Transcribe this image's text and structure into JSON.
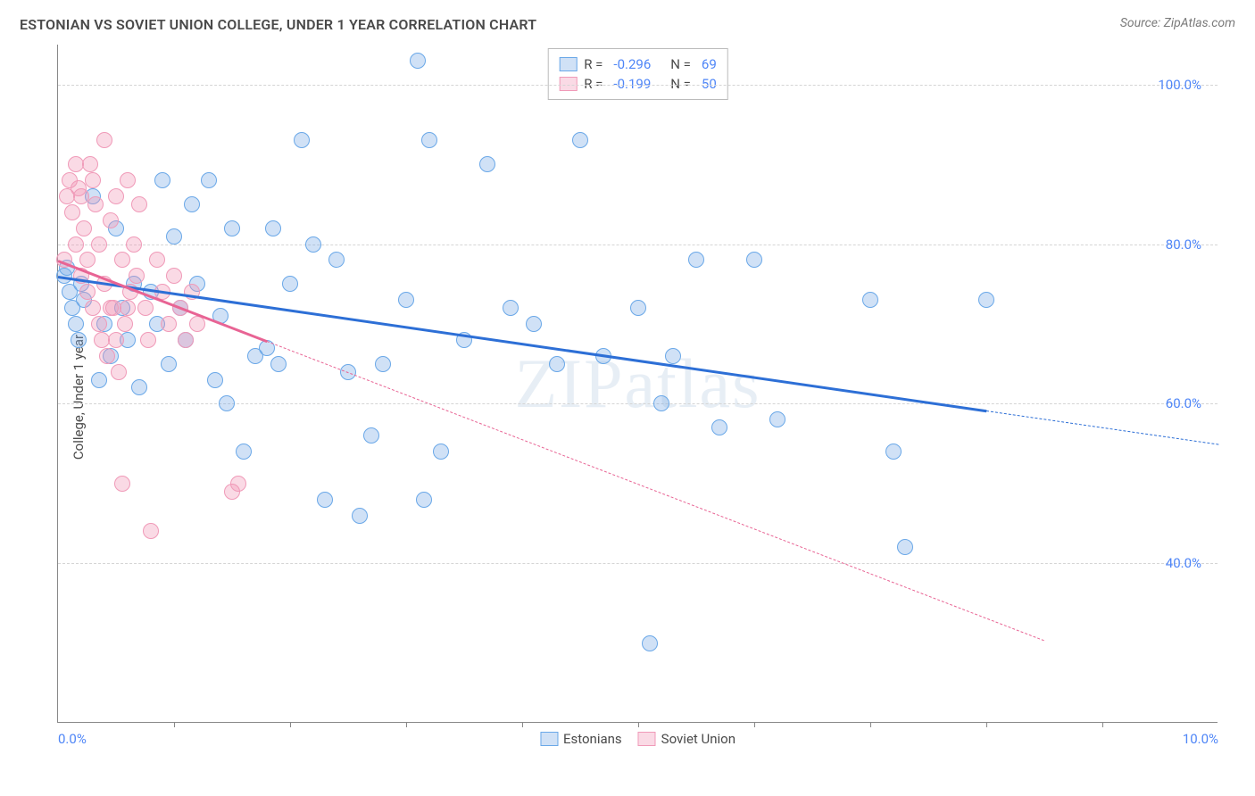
{
  "title": "ESTONIAN VS SOVIET UNION COLLEGE, UNDER 1 YEAR CORRELATION CHART",
  "source": "Source: ZipAtlas.com",
  "ylabel": "College, Under 1 year",
  "watermark": "ZIPatlas",
  "chart": {
    "type": "scatter",
    "xlim": [
      0,
      10
    ],
    "ylim": [
      20,
      105
    ],
    "background_color": "#ffffff",
    "grid_color": "#d5d5d5",
    "axis_color": "#888888",
    "yticks": [
      {
        "value": 40,
        "label": "40.0%"
      },
      {
        "value": 60,
        "label": "60.0%"
      },
      {
        "value": 80,
        "label": "80.0%"
      },
      {
        "value": 100,
        "label": "100.0%"
      }
    ],
    "xtick_positions": [
      1,
      2,
      3,
      4,
      5,
      6,
      7,
      8,
      9
    ],
    "xaxis_labels": [
      {
        "pos": 0,
        "text": "0.0%"
      },
      {
        "pos": 10,
        "text": "10.0%"
      }
    ],
    "marker_radius": 9,
    "marker_border_width": 1.5,
    "series": [
      {
        "name": "Estonians",
        "fill_color": "rgba(120,170,230,0.35)",
        "stroke_color": "#6aa8e8",
        "trend_color": "#2d6fd6",
        "trend_solid_range": [
          0,
          8.0
        ],
        "trend_y": [
          76.0,
          55.0
        ],
        "points": [
          [
            0.05,
            76
          ],
          [
            0.08,
            77
          ],
          [
            0.1,
            74
          ],
          [
            0.12,
            72
          ],
          [
            0.15,
            70
          ],
          [
            0.18,
            68
          ],
          [
            0.2,
            75
          ],
          [
            0.22,
            73
          ],
          [
            0.3,
            86
          ],
          [
            0.35,
            63
          ],
          [
            0.4,
            70
          ],
          [
            0.45,
            66
          ],
          [
            0.5,
            82
          ],
          [
            0.55,
            72
          ],
          [
            0.6,
            68
          ],
          [
            0.65,
            75
          ],
          [
            0.7,
            62
          ],
          [
            0.8,
            74
          ],
          [
            0.85,
            70
          ],
          [
            0.9,
            88
          ],
          [
            0.95,
            65
          ],
          [
            1.0,
            81
          ],
          [
            1.05,
            72
          ],
          [
            1.1,
            68
          ],
          [
            1.15,
            85
          ],
          [
            1.2,
            75
          ],
          [
            1.3,
            88
          ],
          [
            1.35,
            63
          ],
          [
            1.4,
            71
          ],
          [
            1.45,
            60
          ],
          [
            1.5,
            82
          ],
          [
            1.6,
            54
          ],
          [
            1.7,
            66
          ],
          [
            1.8,
            67
          ],
          [
            1.85,
            82
          ],
          [
            1.9,
            65
          ],
          [
            2.0,
            75
          ],
          [
            2.1,
            93
          ],
          [
            2.2,
            80
          ],
          [
            2.3,
            48
          ],
          [
            2.4,
            78
          ],
          [
            2.5,
            64
          ],
          [
            2.6,
            46
          ],
          [
            2.7,
            56
          ],
          [
            2.8,
            65
          ],
          [
            3.0,
            73
          ],
          [
            3.1,
            103
          ],
          [
            3.15,
            48
          ],
          [
            3.2,
            93
          ],
          [
            3.3,
            54
          ],
          [
            3.5,
            68
          ],
          [
            3.7,
            90
          ],
          [
            3.9,
            72
          ],
          [
            4.1,
            70
          ],
          [
            4.3,
            65
          ],
          [
            4.5,
            93
          ],
          [
            4.7,
            66
          ],
          [
            5.0,
            72
          ],
          [
            5.1,
            30
          ],
          [
            5.2,
            60
          ],
          [
            5.3,
            66
          ],
          [
            5.5,
            78
          ],
          [
            5.7,
            57
          ],
          [
            6.0,
            78
          ],
          [
            6.2,
            58
          ],
          [
            7.0,
            73
          ],
          [
            7.2,
            54
          ],
          [
            7.3,
            42
          ],
          [
            8.0,
            73
          ]
        ]
      },
      {
        "name": "Soviet Union",
        "fill_color": "rgba(240,150,180,0.35)",
        "stroke_color": "#f09ab8",
        "trend_color": "#e86494",
        "trend_solid_range": [
          0,
          1.8
        ],
        "trend_dashed_end": 8.5,
        "trend_y": [
          78.0,
          22.0
        ],
        "points": [
          [
            0.05,
            78
          ],
          [
            0.08,
            86
          ],
          [
            0.1,
            88
          ],
          [
            0.12,
            84
          ],
          [
            0.15,
            80
          ],
          [
            0.18,
            87
          ],
          [
            0.2,
            76
          ],
          [
            0.22,
            82
          ],
          [
            0.25,
            74
          ],
          [
            0.28,
            90
          ],
          [
            0.3,
            72
          ],
          [
            0.32,
            85
          ],
          [
            0.35,
            70
          ],
          [
            0.38,
            68
          ],
          [
            0.4,
            93
          ],
          [
            0.42,
            66
          ],
          [
            0.45,
            83
          ],
          [
            0.48,
            72
          ],
          [
            0.5,
            86
          ],
          [
            0.52,
            64
          ],
          [
            0.55,
            78
          ],
          [
            0.58,
            70
          ],
          [
            0.6,
            88
          ],
          [
            0.62,
            74
          ],
          [
            0.65,
            80
          ],
          [
            0.68,
            76
          ],
          [
            0.7,
            85
          ],
          [
            0.75,
            72
          ],
          [
            0.78,
            68
          ],
          [
            0.8,
            44
          ],
          [
            0.85,
            78
          ],
          [
            0.9,
            74
          ],
          [
            0.95,
            70
          ],
          [
            1.0,
            76
          ],
          [
            1.05,
            72
          ],
          [
            1.1,
            68
          ],
          [
            1.15,
            74
          ],
          [
            1.2,
            70
          ],
          [
            0.55,
            50
          ],
          [
            1.5,
            49
          ],
          [
            1.55,
            50
          ],
          [
            0.3,
            88
          ],
          [
            0.4,
            75
          ],
          [
            0.15,
            90
          ],
          [
            0.5,
            68
          ],
          [
            0.45,
            72
          ],
          [
            0.35,
            80
          ],
          [
            0.25,
            78
          ],
          [
            0.6,
            72
          ],
          [
            0.2,
            86
          ]
        ]
      }
    ]
  },
  "legend_top": {
    "rows": [
      {
        "swatch_fill": "rgba(120,170,230,0.35)",
        "swatch_stroke": "#6aa8e8",
        "r_label": "R =",
        "r_value": "-0.296",
        "n_label": "N =",
        "n_value": "69"
      },
      {
        "swatch_fill": "rgba(240,150,180,0.35)",
        "swatch_stroke": "#f09ab8",
        "r_label": "R =",
        "r_value": "-0.199",
        "n_label": "N =",
        "n_value": "50"
      }
    ]
  },
  "legend_bottom": {
    "items": [
      {
        "swatch_fill": "rgba(120,170,230,0.35)",
        "swatch_stroke": "#6aa8e8",
        "label": "Estonians"
      },
      {
        "swatch_fill": "rgba(240,150,180,0.35)",
        "swatch_stroke": "#f09ab8",
        "label": "Soviet Union"
      }
    ]
  }
}
